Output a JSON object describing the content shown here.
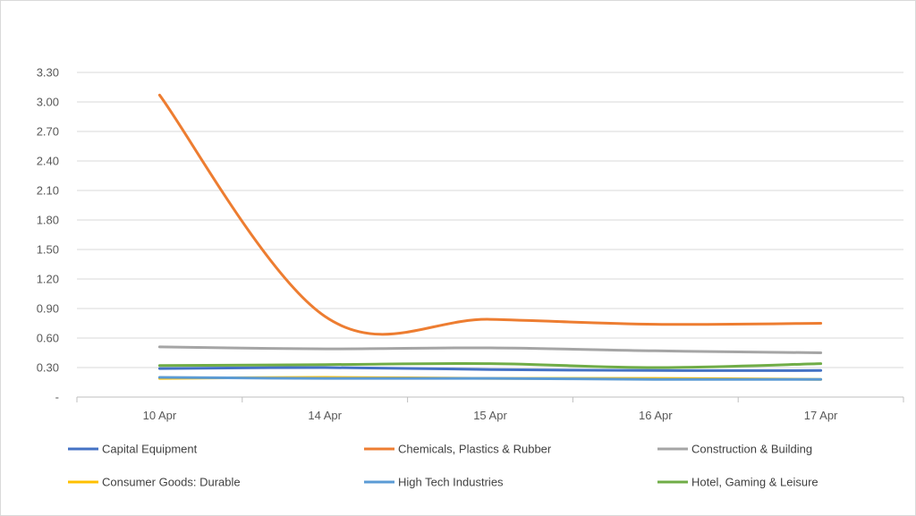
{
  "chart_data": {
    "type": "line",
    "categories": [
      "10 Apr",
      "14 Apr",
      "15 Apr",
      "16 Apr",
      "17 Apr"
    ],
    "ylim": [
      0,
      3.3
    ],
    "yticks": [
      {
        "value": 0,
        "label": "-"
      },
      {
        "value": 0.3,
        "label": "0.30"
      },
      {
        "value": 0.6,
        "label": "0.60"
      },
      {
        "value": 0.9,
        "label": "0.90"
      },
      {
        "value": 1.2,
        "label": "1.20"
      },
      {
        "value": 1.5,
        "label": "1.50"
      },
      {
        "value": 1.8,
        "label": "1.80"
      },
      {
        "value": 2.1,
        "label": "2.10"
      },
      {
        "value": 2.4,
        "label": "2.40"
      },
      {
        "value": 2.7,
        "label": "2.70"
      },
      {
        "value": 3.0,
        "label": "3.00"
      },
      {
        "value": 3.3,
        "label": "3.30"
      }
    ],
    "grid": "horizontal",
    "legend_position": "bottom",
    "smooth": true,
    "series": [
      {
        "name": "Capital Equipment",
        "color": "#4472c4",
        "values": [
          0.29,
          0.3,
          0.28,
          0.27,
          0.27
        ]
      },
      {
        "name": "Chemicals, Plastics & Rubber",
        "color": "#ed7d31",
        "values": [
          3.07,
          0.82,
          0.79,
          0.74,
          0.75
        ]
      },
      {
        "name": "Construction & Building",
        "color": "#a5a5a5",
        "values": [
          0.51,
          0.49,
          0.5,
          0.47,
          0.45
        ]
      },
      {
        "name": "Consumer Goods: Durable",
        "color": "#ffc000",
        "values": [
          0.19,
          0.2,
          0.19,
          0.19,
          0.18
        ]
      },
      {
        "name": "High Tech Industries",
        "color": "#5b9bd5",
        "values": [
          0.2,
          0.19,
          0.19,
          0.18,
          0.18
        ]
      },
      {
        "name": "Hotel, Gaming & Leisure",
        "color": "#70ad47",
        "values": [
          0.32,
          0.33,
          0.34,
          0.3,
          0.34
        ]
      }
    ]
  }
}
